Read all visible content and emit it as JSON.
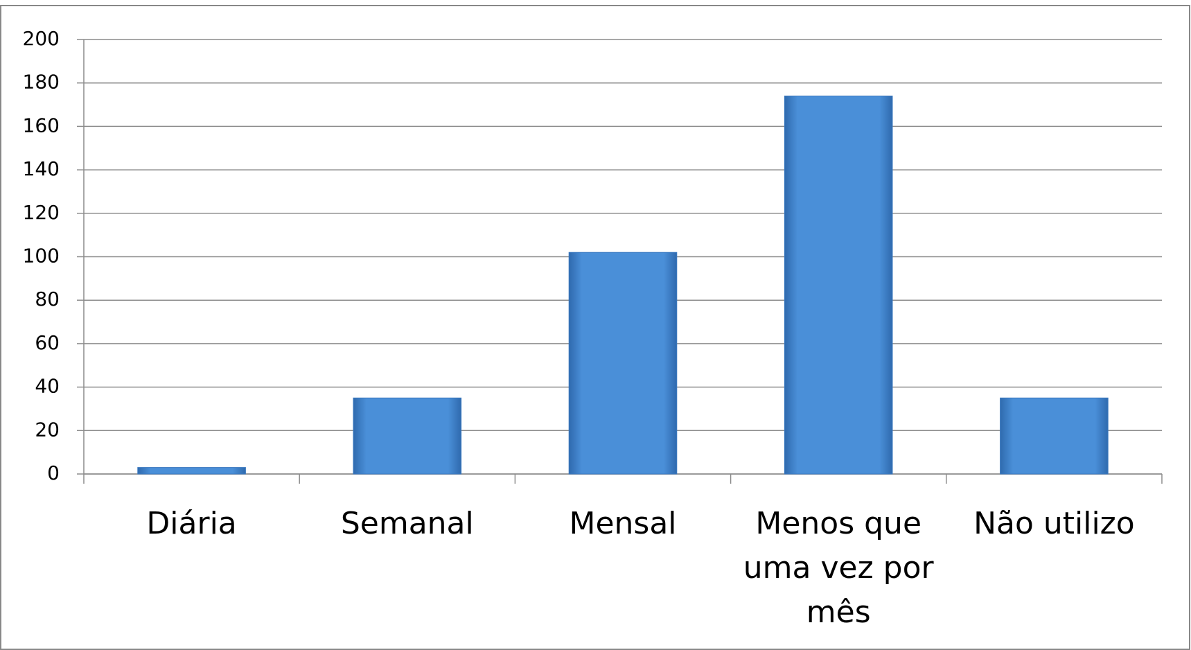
{
  "chart_data": {
    "type": "bar",
    "categories": [
      "Diária",
      "Semanal",
      "Mensal",
      "Menos que uma vez por mês",
      "Não utilizo"
    ],
    "values": [
      3,
      35,
      102,
      174,
      35
    ],
    "color": "#4a8fd8",
    "ylim": [
      0,
      200
    ],
    "yticks": [
      0,
      20,
      40,
      60,
      80,
      100,
      120,
      140,
      160,
      180,
      200
    ],
    "grid": true
  }
}
